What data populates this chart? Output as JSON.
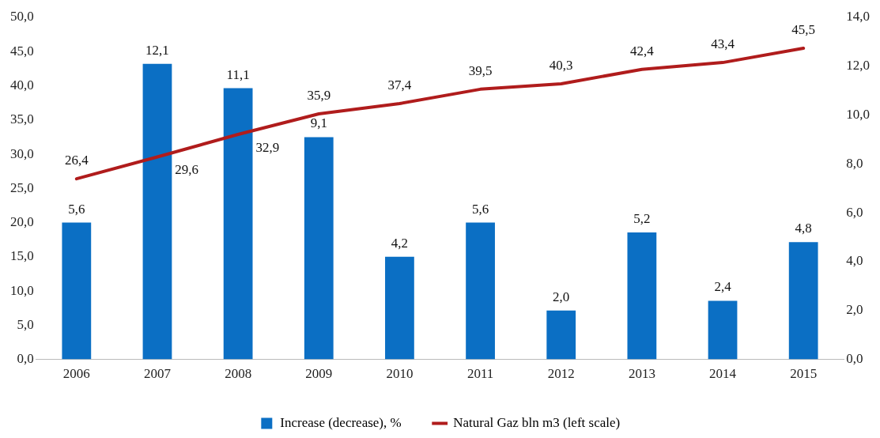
{
  "chart_data": {
    "type": "bar",
    "categories": [
      "2006",
      "2007",
      "2008",
      "2009",
      "2010",
      "2011",
      "2012",
      "2013",
      "2014",
      "2015"
    ],
    "series": [
      {
        "name": "Increase (decrease), %",
        "axis": "y2",
        "color": "#0b6fc4",
        "values": [
          5.6,
          12.1,
          11.1,
          9.1,
          4.2,
          5.6,
          2.0,
          5.2,
          2.4,
          4.8
        ],
        "value_labels": [
          "5,6",
          "12,1",
          "11,1",
          "9,1",
          "4,2",
          "5,6",
          "2,0",
          "5,2",
          "2,4",
          "4,8"
        ]
      },
      {
        "name": "Natural Gaz bln m3 (left scale)",
        "type": "line",
        "color": "#b01c1c",
        "values": [
          26.4,
          29.6,
          32.9,
          35.9,
          37.4,
          39.5,
          40.3,
          42.4,
          43.4,
          45.5
        ],
        "value_labels": [
          "26,4",
          "29,6",
          "32,9",
          "35,9",
          "37,4",
          "39,5",
          "40,3",
          "42,4",
          "43,4",
          "45,5"
        ]
      }
    ],
    "ylim": [
      0,
      50
    ],
    "yticks": [
      {
        "value": 0,
        "label": "0,0"
      },
      {
        "value": 5,
        "label": "5,0"
      },
      {
        "value": 10,
        "label": "10,0"
      },
      {
        "value": 15,
        "label": "15,0"
      },
      {
        "value": 20,
        "label": "20,0"
      },
      {
        "value": 25,
        "label": "25,0"
      },
      {
        "value": 30,
        "label": "30,0"
      },
      {
        "value": 35,
        "label": "35,0"
      },
      {
        "value": 40,
        "label": "40,0"
      },
      {
        "value": 45,
        "label": "45,0"
      },
      {
        "value": 50,
        "label": "50,0"
      }
    ],
    "y2lim": [
      0,
      14
    ],
    "y2ticks": [
      {
        "value": 0,
        "label": "0,0"
      },
      {
        "value": 2,
        "label": "2,0"
      },
      {
        "value": 4,
        "label": "4,0"
      },
      {
        "value": 6,
        "label": "6,0"
      },
      {
        "value": 8,
        "label": "8,0"
      },
      {
        "value": 10,
        "label": "10,0"
      },
      {
        "value": 12,
        "label": "12,0"
      },
      {
        "value": 14,
        "label": "14,0"
      }
    ],
    "grid": false,
    "legend": "bottom",
    "marker": "none"
  }
}
